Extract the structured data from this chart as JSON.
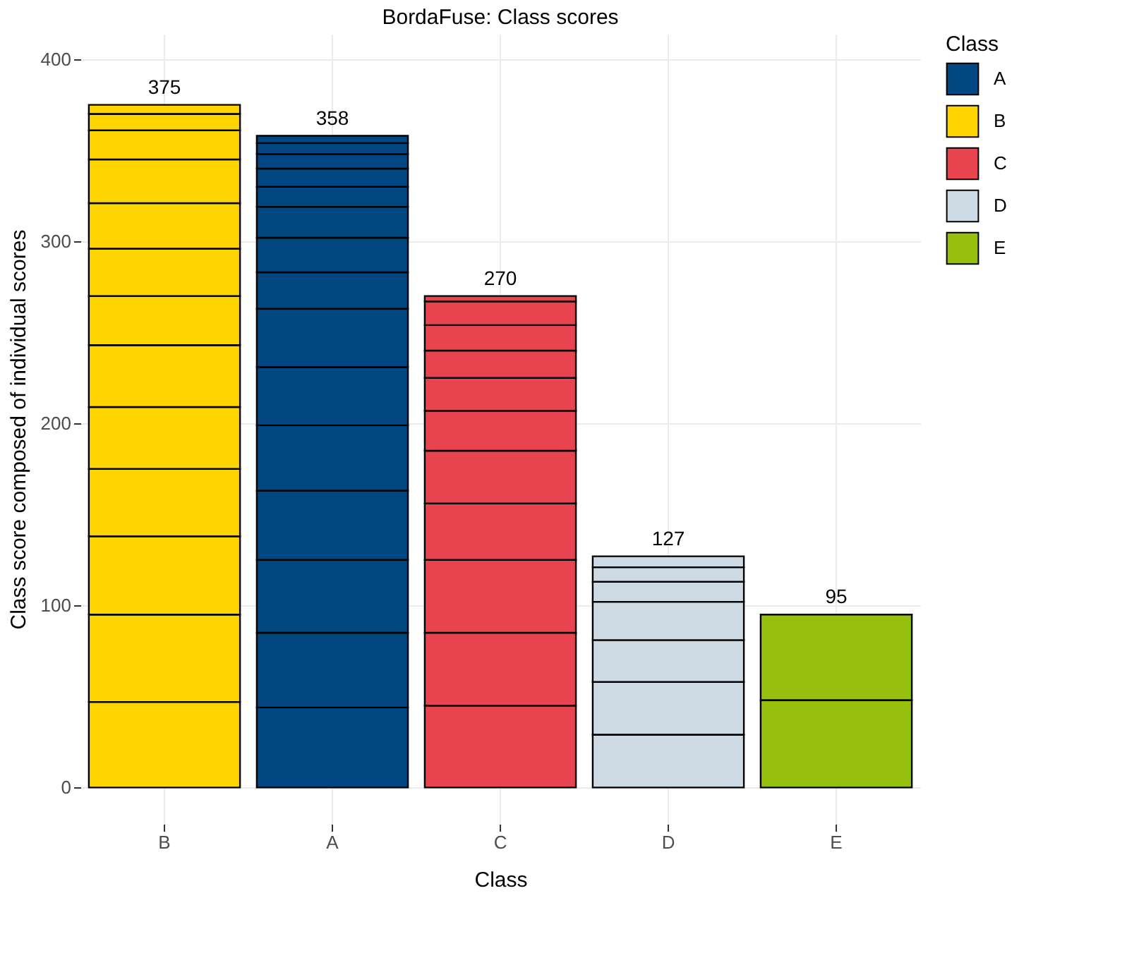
{
  "chart_data": {
    "type": "bar",
    "title": "BordaFuse: Class scores",
    "xlabel": "Class",
    "ylabel": "Class score composed of individual scores",
    "legend_title": "Class",
    "categories": [
      "B",
      "A",
      "C",
      "D",
      "E"
    ],
    "stacked": true,
    "ylim": [
      -20,
      414
    ],
    "yticks": [
      0,
      100,
      200,
      300,
      400
    ],
    "grid": true,
    "legend": "right",
    "totals": [
      "375",
      "358",
      "270",
      "127",
      "95"
    ],
    "series": [
      {
        "name": "A",
        "color": "#004681",
        "values": [
          null,
          44,
          null,
          null,
          null
        ]
      },
      {
        "color": "#004681",
        "values": [
          null,
          41,
          null,
          null,
          null
        ]
      },
      {
        "color": "#004681",
        "values": [
          null,
          40,
          null,
          null,
          null
        ]
      },
      {
        "color": "#004681",
        "values": [
          null,
          38,
          null,
          null,
          null
        ]
      },
      {
        "color": "#004681",
        "values": [
          null,
          36,
          null,
          null,
          null
        ]
      },
      {
        "color": "#004681",
        "values": [
          null,
          32,
          null,
          null,
          null
        ]
      },
      {
        "color": "#004681",
        "values": [
          null,
          32,
          null,
          null,
          null
        ]
      },
      {
        "color": "#004681",
        "values": [
          null,
          20,
          null,
          null,
          null
        ]
      },
      {
        "color": "#004681",
        "values": [
          null,
          19,
          null,
          null,
          null
        ]
      },
      {
        "color": "#004681",
        "values": [
          null,
          17,
          null,
          null,
          null
        ]
      },
      {
        "color": "#004681",
        "values": [
          null,
          11,
          null,
          null,
          null
        ]
      },
      {
        "color": "#004681",
        "values": [
          null,
          10,
          null,
          null,
          null
        ]
      },
      {
        "color": "#004681",
        "values": [
          null,
          8,
          null,
          null,
          null
        ]
      },
      {
        "color": "#004681",
        "values": [
          null,
          6,
          null,
          null,
          null
        ]
      },
      {
        "color": "#004681",
        "values": [
          null,
          4,
          null,
          null,
          null
        ]
      },
      {
        "name": "B",
        "color": "#ffd500",
        "values": [
          47,
          null,
          null,
          null,
          null
        ]
      },
      {
        "color": "#ffd500",
        "values": [
          48,
          null,
          null,
          null,
          null
        ]
      },
      {
        "color": "#ffd500",
        "values": [
          43,
          null,
          null,
          null,
          null
        ]
      },
      {
        "color": "#ffd500",
        "values": [
          37,
          null,
          null,
          null,
          null
        ]
      },
      {
        "color": "#ffd500",
        "values": [
          34,
          null,
          null,
          null,
          null
        ]
      },
      {
        "color": "#ffd500",
        "values": [
          34,
          null,
          null,
          null,
          null
        ]
      },
      {
        "color": "#ffd500",
        "values": [
          27,
          null,
          null,
          null,
          null
        ]
      },
      {
        "color": "#ffd500",
        "values": [
          26,
          null,
          null,
          null,
          null
        ]
      },
      {
        "color": "#ffd500",
        "values": [
          25,
          null,
          null,
          null,
          null
        ]
      },
      {
        "color": "#ffd500",
        "values": [
          24,
          null,
          null,
          null,
          null
        ]
      },
      {
        "color": "#ffd500",
        "values": [
          16,
          null,
          null,
          null,
          null
        ]
      },
      {
        "color": "#ffd500",
        "values": [
          9,
          null,
          null,
          null,
          null
        ]
      },
      {
        "color": "#ffd500",
        "values": [
          5,
          null,
          null,
          null,
          null
        ]
      },
      {
        "name": "C",
        "color": "#e8444f",
        "values": [
          null,
          null,
          45,
          null,
          null
        ]
      },
      {
        "color": "#e8444f",
        "values": [
          null,
          null,
          40,
          null,
          null
        ]
      },
      {
        "color": "#e8444f",
        "values": [
          null,
          null,
          40,
          null,
          null
        ]
      },
      {
        "color": "#e8444f",
        "values": [
          null,
          null,
          31,
          null,
          null
        ]
      },
      {
        "color": "#e8444f",
        "values": [
          null,
          null,
          29,
          null,
          null
        ]
      },
      {
        "color": "#e8444f",
        "values": [
          null,
          null,
          22,
          null,
          null
        ]
      },
      {
        "color": "#e8444f",
        "values": [
          null,
          null,
          18,
          null,
          null
        ]
      },
      {
        "color": "#e8444f",
        "values": [
          null,
          null,
          15,
          null,
          null
        ]
      },
      {
        "color": "#e8444f",
        "values": [
          null,
          null,
          14,
          null,
          null
        ]
      },
      {
        "color": "#e8444f",
        "values": [
          null,
          null,
          13,
          null,
          null
        ]
      },
      {
        "color": "#e8444f",
        "values": [
          null,
          null,
          3,
          null,
          null
        ]
      },
      {
        "name": "D",
        "color": "#cddae3",
        "values": [
          null,
          null,
          null,
          29,
          null
        ]
      },
      {
        "color": "#cddae3",
        "values": [
          null,
          null,
          null,
          29,
          null
        ]
      },
      {
        "color": "#cddae3",
        "values": [
          null,
          null,
          null,
          23,
          null
        ]
      },
      {
        "color": "#cddae3",
        "values": [
          null,
          null,
          null,
          21,
          null
        ]
      },
      {
        "color": "#cddae3",
        "values": [
          null,
          null,
          null,
          11,
          null
        ]
      },
      {
        "color": "#cddae3",
        "values": [
          null,
          null,
          null,
          8,
          null
        ]
      },
      {
        "color": "#cddae3",
        "values": [
          null,
          null,
          null,
          6,
          null
        ]
      },
      {
        "name": "E",
        "color": "#97bf0d",
        "values": [
          null,
          null,
          null,
          null,
          48
        ]
      },
      {
        "color": "#97bf0d",
        "values": [
          null,
          null,
          null,
          null,
          47
        ]
      }
    ]
  }
}
